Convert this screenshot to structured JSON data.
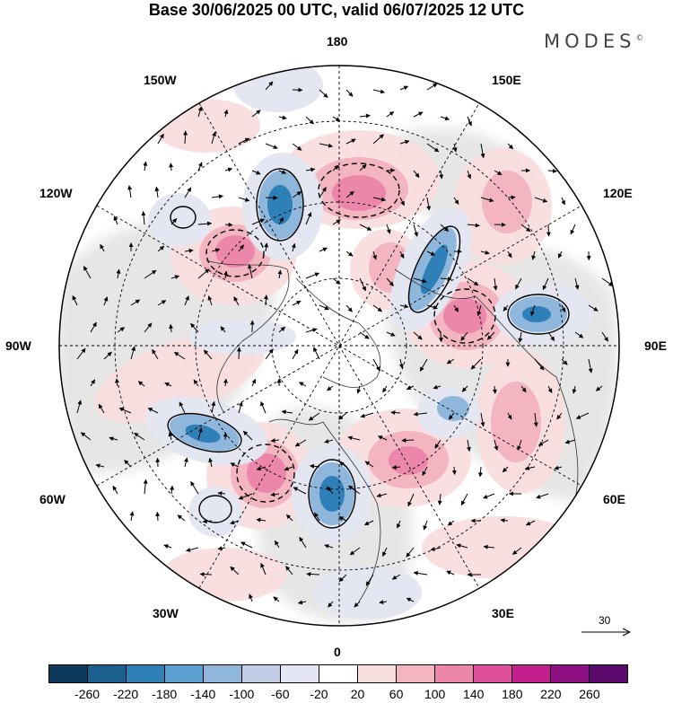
{
  "title": "Base 30/06/2025 00 UTC, valid 06/07/2025 12 UTC",
  "brand": "MODES",
  "brand_mark": "©",
  "longitude_labels": {
    "top": "180",
    "bottom": "0",
    "left": "90W",
    "right": "90E",
    "upper_left_1": "150W",
    "upper_left_2": "120W",
    "lower_left_1": "60W",
    "lower_left_2": "30W",
    "upper_right_1": "150E",
    "upper_right_2": "120E",
    "lower_right_1": "60E",
    "lower_right_2": "30E"
  },
  "vector_scale_label": "30",
  "colorbar": {
    "colors": [
      "#0d3a5c",
      "#1a5f8e",
      "#2f7fb8",
      "#5a9fcf",
      "#8fb7dc",
      "#c1cde6",
      "#e4e6f2",
      "#ffffff",
      "#f9dede",
      "#f3b6c0",
      "#ec86aa",
      "#de4f9c",
      "#c41f8f",
      "#8e0f82",
      "#5c0a6e"
    ],
    "ticks": [
      "-260",
      "-220",
      "-180",
      "-140",
      "-100",
      "-60",
      "-20",
      "20",
      "60",
      "100",
      "140",
      "180",
      "220",
      "260"
    ]
  },
  "colors": {
    "positive": "#ec86aa",
    "negative": "#2f7fb8",
    "land": "#e9e9e9",
    "outline": "#000000"
  }
}
